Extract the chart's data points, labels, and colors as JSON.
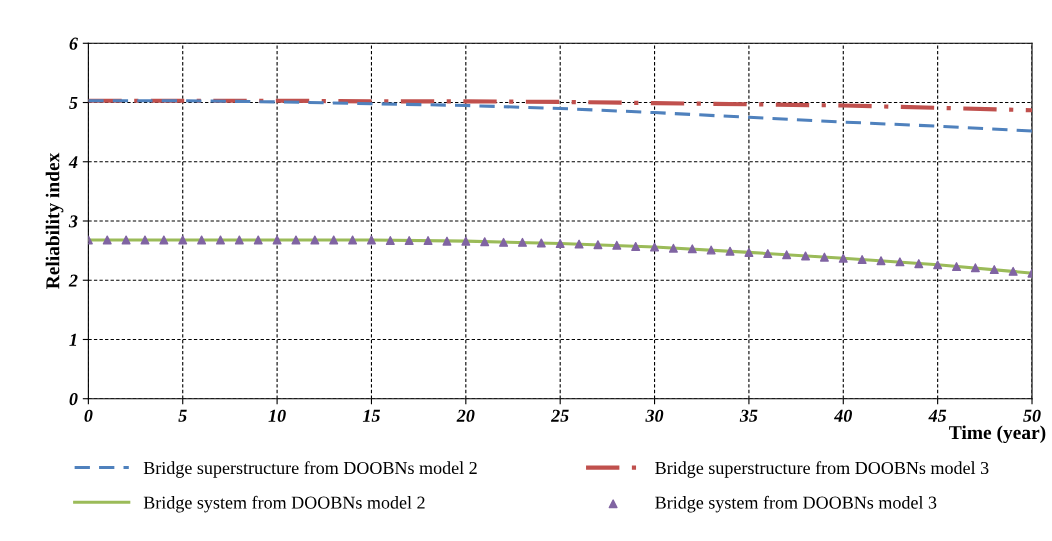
{
  "chart_data": {
    "type": "line",
    "xlabel": "Time (year)",
    "ylabel": "Reliability index",
    "xlim": [
      0,
      50
    ],
    "xticks": [
      0,
      5,
      10,
      15,
      20,
      25,
      30,
      35,
      40,
      45,
      50
    ],
    "ylim": [
      0,
      6
    ],
    "yticks": [
      0,
      1,
      2,
      3,
      4,
      5,
      6
    ],
    "grid": true,
    "legend": "bottom",
    "series": [
      {
        "name": "Bridge superstructure from DOOBNs model 2",
        "color": "#4f81bd",
        "line_style": "dashed",
        "marker": "none",
        "x": [
          0,
          5,
          10,
          15,
          20,
          25,
          30,
          35,
          40,
          45,
          50
        ],
        "values": [
          5.03,
          5.03,
          5.01,
          4.98,
          4.95,
          4.9,
          4.83,
          4.75,
          4.67,
          4.6,
          4.52
        ]
      },
      {
        "name": "Bridge superstructure from DOOBNs model 3",
        "color": "#c0504d",
        "line_style": "dashdot",
        "marker": "none",
        "x": [
          0,
          5,
          10,
          15,
          20,
          25,
          30,
          35,
          40,
          45,
          50
        ],
        "values": [
          5.03,
          5.03,
          5.03,
          5.02,
          5.02,
          5.01,
          4.99,
          4.97,
          4.95,
          4.91,
          4.87
        ]
      },
      {
        "name": "Bridge system from DOOBNs model 2",
        "color": "#9bbb59",
        "line_style": "solid",
        "marker": "none",
        "x": [
          0,
          5,
          10,
          15,
          20,
          25,
          30,
          35,
          40,
          45,
          50
        ],
        "values": [
          2.68,
          2.68,
          2.68,
          2.68,
          2.66,
          2.62,
          2.56,
          2.47,
          2.37,
          2.26,
          2.12
        ]
      },
      {
        "name": "Bridge system from DOOBNs model 3",
        "color": "#8064a2",
        "type": "scatter",
        "marker": "triangle",
        "x": [
          0,
          1,
          2,
          3,
          4,
          5,
          6,
          7,
          8,
          9,
          10,
          11,
          12,
          13,
          14,
          15,
          16,
          17,
          18,
          19,
          20,
          21,
          22,
          23,
          24,
          25,
          26,
          27,
          28,
          29,
          30,
          31,
          32,
          33,
          34,
          35,
          36,
          37,
          38,
          39,
          40,
          41,
          42,
          43,
          44,
          45,
          46,
          47,
          48,
          49,
          50
        ],
        "values": [
          2.68,
          2.68,
          2.68,
          2.68,
          2.68,
          2.68,
          2.68,
          2.68,
          2.68,
          2.68,
          2.68,
          2.68,
          2.68,
          2.68,
          2.68,
          2.68,
          2.67,
          2.67,
          2.67,
          2.66,
          2.66,
          2.65,
          2.64,
          2.64,
          2.63,
          2.62,
          2.61,
          2.6,
          2.59,
          2.57,
          2.56,
          2.54,
          2.53,
          2.51,
          2.49,
          2.47,
          2.45,
          2.43,
          2.41,
          2.39,
          2.37,
          2.35,
          2.33,
          2.31,
          2.28,
          2.26,
          2.23,
          2.21,
          2.18,
          2.15,
          2.12
        ]
      }
    ]
  }
}
